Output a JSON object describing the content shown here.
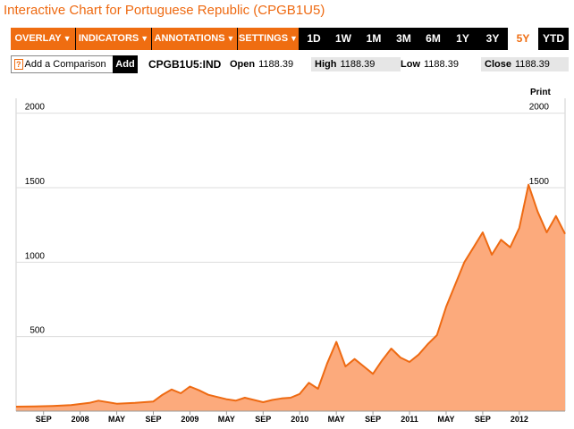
{
  "title": "Interactive Chart for Portuguese Republic (CPGB1U5)",
  "toolbar": {
    "menus": [
      {
        "label": "OVERLAY"
      },
      {
        "label": "INDICATORS"
      },
      {
        "label": "ANNOTATIONS"
      },
      {
        "label": "SETTINGS"
      }
    ],
    "ranges": [
      "1D",
      "1W",
      "1M",
      "3M",
      "6M",
      "1Y",
      "3Y",
      "5Y",
      "YTD"
    ],
    "active_range": "5Y"
  },
  "infobar": {
    "compare_icon": "?",
    "compare_label": "Add a Comparison",
    "add_label": "Add",
    "ticker": "CPGB1U5:IND",
    "open_label": "Open",
    "open_value": "1188.39",
    "high_label": "High",
    "high_value": "1188.39",
    "low_label": "Low",
    "low_value": "1188.39",
    "close_label": "Close",
    "close_value": "1188.39"
  },
  "print_label": "Print",
  "colors": {
    "accent": "#ef6d11",
    "line": "#ee6a12",
    "fill": "#fcaa7c"
  },
  "chart_data": {
    "type": "area",
    "title": "",
    "xlabel": "",
    "ylabel": "",
    "xlim": [
      "2007-06",
      "2012-06"
    ],
    "ylim": [
      0,
      2100
    ],
    "grid": "horizontal",
    "y_ticks": [
      500,
      1000,
      1500,
      2000
    ],
    "x_ticks": [
      {
        "label": "SEP",
        "at": "2007-09"
      },
      {
        "label": "2008",
        "at": "2008-01"
      },
      {
        "label": "MAY",
        "at": "2008-05"
      },
      {
        "label": "SEP",
        "at": "2008-09"
      },
      {
        "label": "2009",
        "at": "2009-01"
      },
      {
        "label": "MAY",
        "at": "2009-05"
      },
      {
        "label": "SEP",
        "at": "2009-09"
      },
      {
        "label": "2010",
        "at": "2010-01"
      },
      {
        "label": "MAY",
        "at": "2010-05"
      },
      {
        "label": "SEP",
        "at": "2010-09"
      },
      {
        "label": "2011",
        "at": "2011-01"
      },
      {
        "label": "MAY",
        "at": "2011-05"
      },
      {
        "label": "SEP",
        "at": "2011-09"
      },
      {
        "label": "2012",
        "at": "2012-01"
      }
    ],
    "series": [
      {
        "x": [
          "2007-06",
          "2007-08",
          "2007-10",
          "2007-12",
          "2008-02",
          "2008-03",
          "2008-05",
          "2008-07",
          "2008-09",
          "2008-10",
          "2008-11",
          "2008-12",
          "2009-01",
          "2009-02",
          "2009-03",
          "2009-04",
          "2009-05",
          "2009-06",
          "2009-07",
          "2009-08",
          "2009-09",
          "2009-10",
          "2009-11",
          "2009-12",
          "2010-01",
          "2010-02",
          "2010-03",
          "2010-04",
          "2010-05",
          "2010-06",
          "2010-07",
          "2010-08",
          "2010-09",
          "2010-10",
          "2010-11",
          "2010-12",
          "2011-01",
          "2011-02",
          "2011-03",
          "2011-04",
          "2011-05",
          "2011-06",
          "2011-07",
          "2011-08",
          "2011-09",
          "2011-10",
          "2011-11",
          "2011-12",
          "2012-01",
          "2012-02",
          "2012-03",
          "2012-04",
          "2012-05",
          "2012-06"
        ],
        "values": [
          30,
          32,
          35,
          40,
          55,
          70,
          50,
          55,
          65,
          110,
          145,
          120,
          165,
          140,
          110,
          95,
          80,
          70,
          90,
          75,
          60,
          75,
          85,
          90,
          115,
          190,
          150,
          320,
          465,
          300,
          350,
          300,
          250,
          340,
          420,
          360,
          330,
          380,
          450,
          510,
          700,
          850,
          1000,
          1100,
          1200,
          1050,
          1150,
          1100,
          1230,
          1520,
          1340,
          1200,
          1310,
          1190
        ]
      }
    ]
  }
}
